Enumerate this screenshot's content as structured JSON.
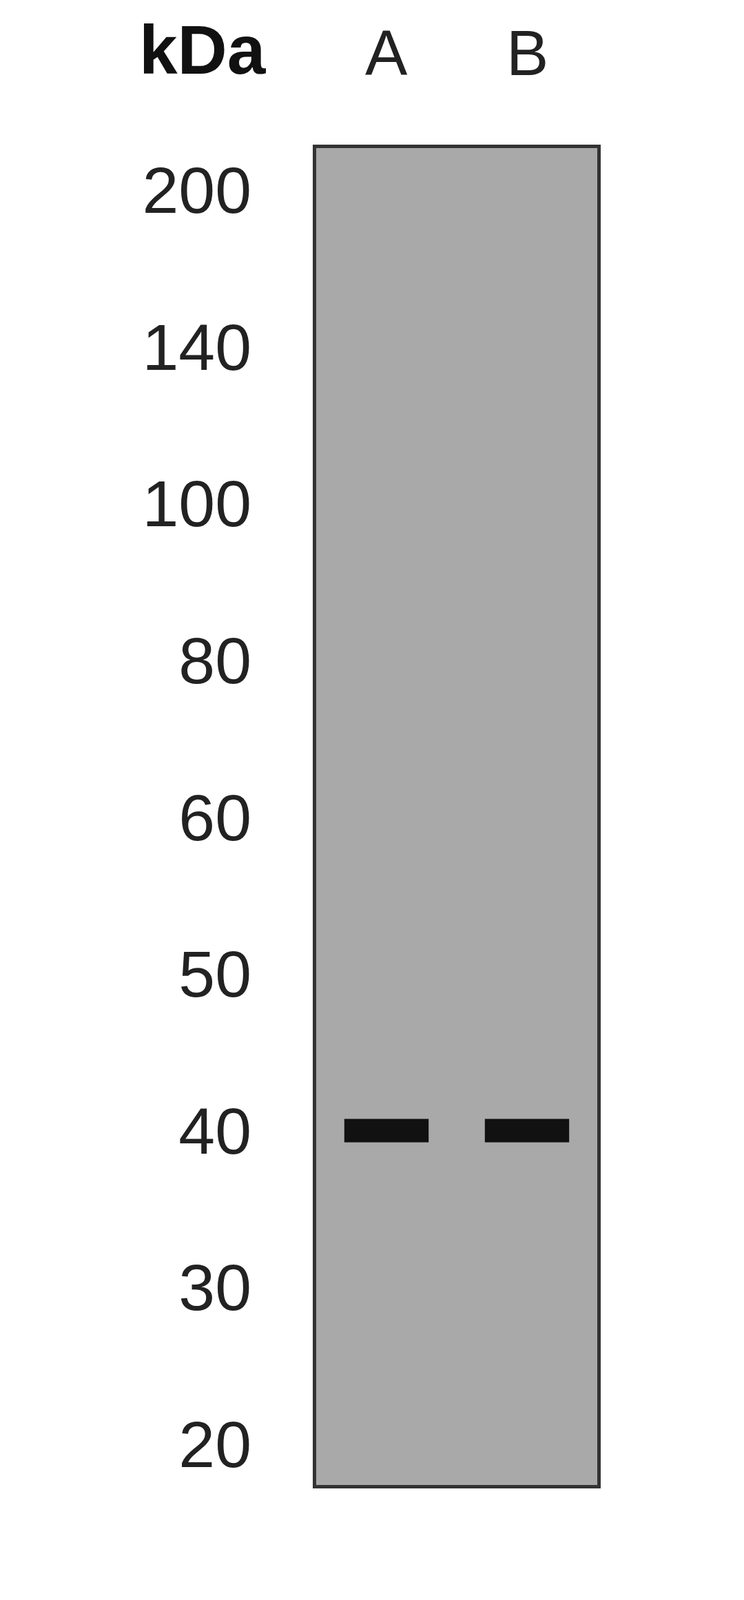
{
  "chart_data": {
    "type": "western_blot",
    "y_label": "kDa",
    "categories": [
      "A",
      "B"
    ],
    "values": [
      40,
      40
    ],
    "color": "#111111",
    "ylim": [
      18,
      220
    ],
    "yticks": [
      200,
      140,
      100,
      80,
      60,
      50,
      40,
      30,
      20
    ],
    "grid": false
  }
}
